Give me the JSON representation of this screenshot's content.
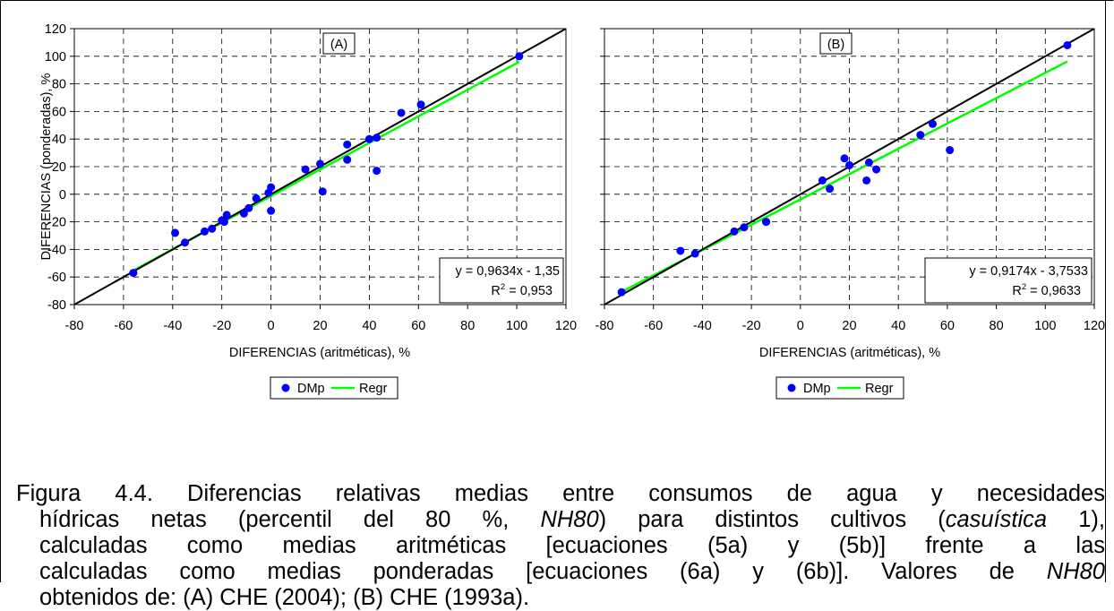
{
  "chart_data": [
    {
      "type": "scatter",
      "panel_label": "(A)",
      "xlabel": "DIFERENCIAS (aritméticas), %",
      "ylabel": "DIFERENCIAS (ponderadas), %",
      "xlim": [
        -80,
        120
      ],
      "ylim": [
        -80,
        120
      ],
      "xticks": [
        -80,
        -60,
        -40,
        -20,
        0,
        20,
        40,
        60,
        80,
        100,
        120
      ],
      "yticks": [
        -80,
        -60,
        -40,
        -20,
        0,
        20,
        40,
        60,
        80,
        100,
        120
      ],
      "grid": true,
      "legend": [
        "DMp",
        "Regr"
      ],
      "legend_placement": "bottom",
      "equation": "y = 0,9634x - 1,35",
      "r2_text": "= 0,953",
      "series": [
        {
          "name": "DMp",
          "kind": "points",
          "x": [
            -56,
            -39,
            -35,
            -27,
            -24,
            -20,
            -19,
            -18,
            -11,
            -9,
            -6,
            -1,
            0,
            0,
            14,
            20,
            21,
            31,
            31,
            40,
            43,
            43,
            53,
            61,
            101
          ],
          "y": [
            -57,
            -28,
            -35,
            -27,
            -25,
            -19,
            -20,
            -15,
            -14,
            -10,
            -3,
            1,
            5,
            -12,
            18,
            22,
            2,
            36,
            25,
            40,
            41,
            17,
            59,
            65,
            100
          ]
        },
        {
          "name": "Regr",
          "kind": "regression",
          "slope": 0.9634,
          "intercept": -1.35,
          "x_range": [
            -56,
            101
          ]
        },
        {
          "name": "identity",
          "kind": "line",
          "slope": 1,
          "intercept": 0
        }
      ]
    },
    {
      "type": "scatter",
      "panel_label": "(B)",
      "xlabel": "DIFERENCIAS (aritméticas), %",
      "ylabel": "",
      "xlim": [
        -80,
        120
      ],
      "ylim": [
        -80,
        120
      ],
      "xticks": [
        -80,
        -60,
        -40,
        -20,
        0,
        20,
        40,
        60,
        80,
        100,
        120
      ],
      "yticks": [
        -80,
        -60,
        -40,
        -20,
        0,
        20,
        40,
        60,
        80,
        100,
        120
      ],
      "grid": true,
      "legend": [
        "DMp",
        "Regr"
      ],
      "legend_placement": "bottom",
      "equation": "y = 0,9174x - 3,7533",
      "r2_text": "= 0,9633",
      "series": [
        {
          "name": "DMp",
          "kind": "points",
          "x": [
            -73,
            -49,
            -43,
            -27,
            -23,
            -14,
            -14,
            9,
            12,
            18,
            20,
            27,
            28,
            31,
            49,
            54,
            61,
            109
          ],
          "y": [
            -71,
            -41,
            -43,
            -27,
            -24,
            -20,
            -20,
            10,
            4,
            26,
            21,
            10,
            23,
            18,
            43,
            51,
            32,
            108
          ]
        },
        {
          "name": "Regr",
          "kind": "regression",
          "slope": 0.9174,
          "intercept": -3.7533,
          "x_range": [
            -73,
            109
          ]
        },
        {
          "name": "identity",
          "kind": "line",
          "slope": 1,
          "intercept": 0
        }
      ]
    }
  ],
  "caption": {
    "line1": "Figura 4.4. Diferencias relativas medias entre consumos de agua y necesidades",
    "line2_a": "hídricas netas (percentil del 80 %, ",
    "line2_b": "NH80",
    "line2_c": ") para distintos cultivos (",
    "line2_d": "casuística",
    "line2_e": " 1),",
    "line3": "calculadas como medias aritméticas [ecuaciones (5a) y (5b)] frente a las",
    "line4_a": "calculadas como medias ponderadas [ecuaciones (6a) y (6b)]. Valores de ",
    "line4_b": "NH80",
    "line5": "obtenidos de: (A) CHE (2004); (B) CHE (1993a)."
  },
  "colors": {
    "points": "#0000ff",
    "regression": "#00ff00",
    "identity": "#000000",
    "grid": "#000000"
  }
}
